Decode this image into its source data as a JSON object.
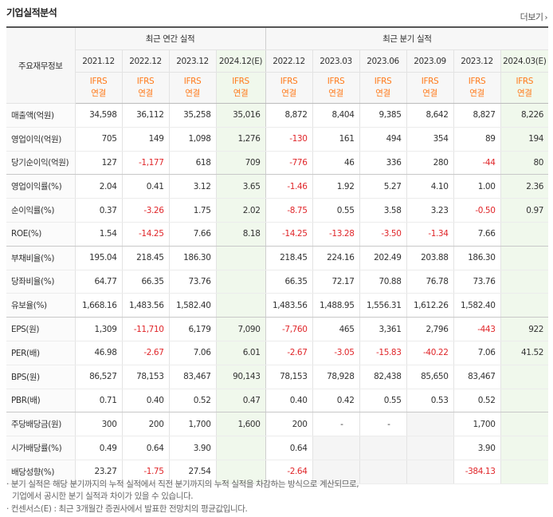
{
  "title": "기업실적분석",
  "more_label": "더보기",
  "more_arrow": "›",
  "row_header": "주요재무정보",
  "groups": {
    "annual": "최근 연간 실적",
    "quarter": "최근 분기 실적"
  },
  "periods": [
    "2021.12",
    "2022.12",
    "2023.12",
    "2024.12(E)",
    "2022.12",
    "2023.03",
    "2023.06",
    "2023.09",
    "2023.12",
    "2024.03(E)"
  ],
  "ifrs_top": "IFRS",
  "ifrs_bottom": "연결",
  "rows": [
    {
      "label": "매출액(억원)",
      "values": [
        "34,598",
        "36,112",
        "35,258",
        "35,016",
        "8,872",
        "8,404",
        "9,385",
        "8,642",
        "8,827",
        "8,226"
      ]
    },
    {
      "label": "영업이익(억원)",
      "values": [
        "705",
        "149",
        "1,098",
        "1,276",
        "-130",
        "161",
        "494",
        "354",
        "89",
        "194"
      ]
    },
    {
      "label": "당기순이익(억원)",
      "values": [
        "127",
        "-1,177",
        "618",
        "709",
        "-776",
        "46",
        "336",
        "280",
        "-44",
        "80"
      ]
    },
    {
      "label": "영업이익률(%)",
      "values": [
        "2.04",
        "0.41",
        "3.12",
        "3.65",
        "-1.46",
        "1.92",
        "5.27",
        "4.10",
        "1.00",
        "2.36"
      ]
    },
    {
      "label": "순이익률(%)",
      "values": [
        "0.37",
        "-3.26",
        "1.75",
        "2.02",
        "-8.75",
        "0.55",
        "3.58",
        "3.23",
        "-0.50",
        "0.97"
      ]
    },
    {
      "label": "ROE(%)",
      "values": [
        "1.54",
        "-14.25",
        "7.66",
        "8.18",
        "-14.25",
        "-13.28",
        "-3.50",
        "-1.34",
        "7.66",
        ""
      ]
    },
    {
      "label": "부채비율(%)",
      "values": [
        "195.04",
        "218.45",
        "186.30",
        "",
        "218.45",
        "224.16",
        "202.49",
        "203.88",
        "186.30",
        ""
      ]
    },
    {
      "label": "당좌비율(%)",
      "values": [
        "64.77",
        "66.35",
        "73.76",
        "",
        "66.35",
        "72.17",
        "70.88",
        "76.78",
        "73.76",
        ""
      ]
    },
    {
      "label": "유보율(%)",
      "values": [
        "1,668.16",
        "1,483.56",
        "1,582.40",
        "",
        "1,483.56",
        "1,488.95",
        "1,556.31",
        "1,612.26",
        "1,582.40",
        ""
      ]
    },
    {
      "label": "EPS(원)",
      "values": [
        "1,309",
        "-11,710",
        "6,179",
        "7,090",
        "-7,760",
        "465",
        "3,361",
        "2,796",
        "-443",
        "922"
      ]
    },
    {
      "label": "PER(배)",
      "values": [
        "46.98",
        "-2.67",
        "7.06",
        "6.01",
        "-2.67",
        "-3.05",
        "-15.83",
        "-40.22",
        "7.06",
        "41.52"
      ]
    },
    {
      "label": "BPS(원)",
      "values": [
        "86,527",
        "78,153",
        "83,467",
        "90,143",
        "78,153",
        "78,928",
        "82,438",
        "85,650",
        "83,467",
        ""
      ]
    },
    {
      "label": "PBR(배)",
      "values": [
        "0.71",
        "0.40",
        "0.52",
        "0.47",
        "0.40",
        "0.42",
        "0.55",
        "0.53",
        "0.52",
        ""
      ]
    },
    {
      "label": "주당배당금(원)",
      "values": [
        "300",
        "200",
        "1,700",
        "1,600",
        "200",
        "-",
        "-",
        "",
        "1,700",
        ""
      ]
    },
    {
      "label": "시가배당률(%)",
      "values": [
        "0.49",
        "0.64",
        "3.90",
        "",
        "0.64",
        "",
        "",
        "",
        "3.90",
        ""
      ]
    },
    {
      "label": "배당성향(%)",
      "values": [
        "23.27",
        "-1.75",
        "27.54",
        "",
        "-2.64",
        "",
        "",
        "",
        "-384.13",
        ""
      ]
    }
  ],
  "notes": [
    "· 분기 실적은 해당 분기까지의 누적 실적에서 직전 분기까지의 누적 실적을 차감하는 방식으로 계산되므로,",
    "기업에서 공시한 분기 실적과 차이가 있을 수 있습니다.",
    "· 컨센서스(E) : 최근 3개월간 증권사에서 발표한 전망치의 평균값입니다."
  ],
  "colors": {
    "negative": "#e0262a",
    "ifrs": "#ff7a1a",
    "estimate_bg": "#f0f8ec",
    "empty_bg": "#f5f5f5"
  }
}
